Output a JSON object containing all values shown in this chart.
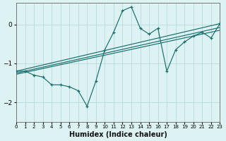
{
  "xlabel": "Humidex (Indice chaleur)",
  "x_values": [
    0,
    1,
    2,
    3,
    4,
    5,
    6,
    7,
    8,
    9,
    10,
    11,
    12,
    13,
    14,
    15,
    16,
    17,
    18,
    19,
    20,
    21,
    22,
    23
  ],
  "main_line": [
    -1.2,
    -1.2,
    -1.3,
    -1.35,
    -1.55,
    -1.55,
    -1.6,
    -1.7,
    -2.1,
    -1.45,
    -0.65,
    -0.2,
    0.35,
    0.45,
    -0.1,
    -0.25,
    -0.1,
    -1.2,
    -0.65,
    -0.45,
    -0.3,
    -0.2,
    -0.35,
    0.02
  ],
  "line_upper": [
    -1.2,
    0.02
  ],
  "line_mid1": [
    -1.25,
    -0.08
  ],
  "line_mid2": [
    -1.28,
    -0.15
  ],
  "line_x": [
    0,
    23
  ],
  "bg_color": "#ddf2f2",
  "line_color": "#1a6e6e",
  "grid_color": "#b8dada",
  "ylim": [
    -2.5,
    0.55
  ],
  "xlim": [
    0,
    23
  ],
  "yticks": [
    -2,
    -1,
    0
  ],
  "xtick_labels": [
    "0",
    "1",
    "2",
    "3",
    "4",
    "5",
    "6",
    "7",
    "8",
    "9",
    "10",
    "11",
    "12",
    "13",
    "14",
    "15",
    "16",
    "17",
    "18",
    "19",
    "20",
    "21",
    "22",
    "23"
  ]
}
